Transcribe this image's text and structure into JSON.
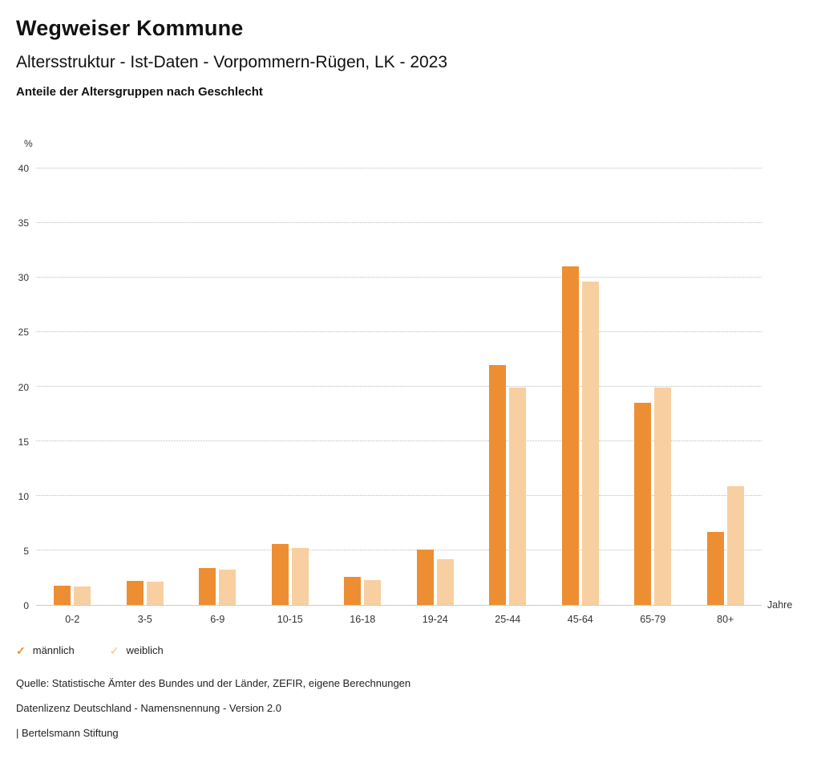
{
  "header": {
    "title": "Wegweiser Kommune",
    "subtitle": "Altersstruktur - Ist-Daten - Vorpommern-Rügen, LK - 2023",
    "chart_title": "Anteile der Altersgruppen nach Geschlecht"
  },
  "chart_data": {
    "type": "bar",
    "title": "Anteile der Altersgruppen nach Geschlecht",
    "categories": [
      "0-2",
      "3-5",
      "6-9",
      "10-15",
      "16-18",
      "19-24",
      "25-44",
      "45-64",
      "65-79",
      "80+"
    ],
    "series": [
      {
        "name": "männlich",
        "color": "#ED8E33",
        "values": [
          1.8,
          2.2,
          3.4,
          5.6,
          2.6,
          5.1,
          22.0,
          31.0,
          18.5,
          6.7
        ]
      },
      {
        "name": "weiblich",
        "color": "#F8CFA0",
        "values": [
          1.7,
          2.1,
          3.2,
          5.2,
          2.3,
          4.2,
          19.9,
          29.6,
          19.9,
          10.9
        ]
      }
    ],
    "xlabel": "Jahre",
    "ylabel": "%",
    "ylim": [
      0,
      40
    ],
    "yticks": [
      0,
      5,
      10,
      15,
      20,
      25,
      30,
      35,
      40
    ],
    "grid": "dotted horizontal",
    "legend_position": "bottom-left"
  },
  "legend": {
    "check_glyph": "✓"
  },
  "footer": {
    "source": "Quelle: Statistische Ämter des Bundes und der Länder, ZEFIR, eigene Berechnungen",
    "license": "Datenlizenz Deutschland - Namensnennung - Version 2.0",
    "attribution": "| Bertelsmann Stiftung"
  }
}
